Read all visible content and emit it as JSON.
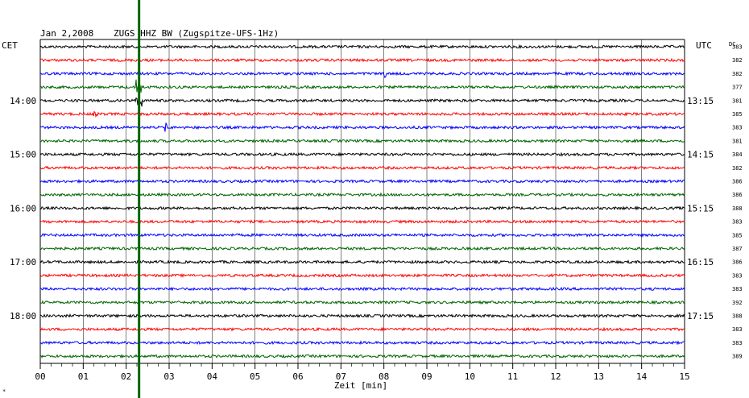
{
  "header": {
    "date": "Jan 2,2008",
    "station": "ZUGS HHZ BW (Zugspitze-UFS-1Hz)"
  },
  "left_timezone": "CET",
  "right_timezone": "UTC",
  "dc_label": "DC",
  "corner_mark": "*",
  "colors": {
    "trace_cycle": [
      "#000000",
      "#ff0000",
      "#0000ff",
      "#006400"
    ],
    "event_line": "#006400",
    "grid": "#000000"
  },
  "chart_data": {
    "type": "line",
    "description_units": "helicorder seismogram, one trace row per 15 minutes",
    "xlabel": "Zeit [min]",
    "xlim": [
      0,
      15
    ],
    "x_ticks": [
      "00",
      "01",
      "02",
      "03",
      "04",
      "05",
      "06",
      "07",
      "08",
      "09",
      "10",
      "11",
      "12",
      "13",
      "14",
      "15"
    ],
    "rows_count": 24,
    "left_hour_labels": [
      {
        "row": 4,
        "label": "14:00"
      },
      {
        "row": 8,
        "label": "15:00"
      },
      {
        "row": 12,
        "label": "16:00"
      },
      {
        "row": 16,
        "label": "17:00"
      },
      {
        "row": 20,
        "label": "18:00"
      }
    ],
    "right_hour_labels": [
      {
        "row": 4,
        "label": "13:15"
      },
      {
        "row": 8,
        "label": "14:15"
      },
      {
        "row": 12,
        "label": "15:15"
      },
      {
        "row": 16,
        "label": "16:15"
      },
      {
        "row": 20,
        "label": "17:15"
      }
    ],
    "dc_offsets": [
      383,
      382,
      382,
      377,
      381,
      385,
      383,
      381,
      384,
      382,
      386,
      386,
      388,
      383,
      385,
      387,
      386,
      383,
      383,
      392,
      388,
      383,
      383,
      389
    ],
    "event_marker_minute": 2.3,
    "spikes": [
      {
        "row": 3,
        "minute": 2.3,
        "amplitude": 10
      },
      {
        "row": 4,
        "minute": 2.3,
        "amplitude": 8
      },
      {
        "row": 5,
        "minute": 1.3,
        "amplitude": 3
      },
      {
        "row": 6,
        "minute": 2.95,
        "amplitude": 6
      },
      {
        "row": 2,
        "minute": 8.0,
        "amplitude": 5
      }
    ]
  }
}
